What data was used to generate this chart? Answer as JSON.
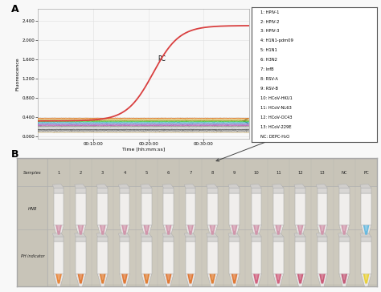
{
  "title_A": "A",
  "title_B": "B",
  "ylabel": "Fluorescence",
  "xlabel": "Time [hh:mm:ss]",
  "yticks": [
    0.0,
    0.4,
    0.8,
    1.2,
    1.6,
    2.0,
    2.4
  ],
  "xtick_labels": [
    "00:10:00",
    "00:20:00",
    "00:30:00"
  ],
  "legend_entries": [
    "1: HPIV-1",
    "2: HPIV-2",
    "3: HPIV-3",
    "4: H1N1-pdm09",
    "5: H1N1",
    "6: H3N2",
    "7: InfB",
    "8: RSV-A",
    "9: RSV-B",
    "10: HCoV-HKU1",
    "11: HCoV-NL63",
    "12: HCoV-OC43",
    "13: HCoV-229E",
    "NC: DEPC-H₂O"
  ],
  "pc_curve_color": "#d94040",
  "flat_line_colors": [
    "#e07828",
    "#c89600",
    "#88a020",
    "#40c040",
    "#28b8b8",
    "#4878c8",
    "#8858b8",
    "#b858a8",
    "#909090",
    "#b0b0b0",
    "#c8c8c8",
    "#585858",
    "#383838",
    "#c0a870"
  ],
  "bg_color": "#f8f8f8",
  "grid_color": "#e0e0e0",
  "plot_bg": "#f8f8f8",
  "annotation_text": "PC",
  "photo_bg": "#c8c4b8",
  "photo_border": "#a8a8a8",
  "cell_line_color": "#b0b0b0",
  "col_labels": [
    "Samples",
    "1",
    "2",
    "3",
    "4",
    "5",
    "6",
    "7",
    "8",
    "9",
    "10",
    "11",
    "12",
    "13",
    "NC",
    "PC"
  ],
  "row_label_hnb": "HNB",
  "row_label_ph": "PH indicator",
  "hnb_colors": [
    "#d090a8",
    "#d090a8",
    "#d090a8",
    "#d090a8",
    "#d090a8",
    "#d090a8",
    "#d090a8",
    "#d090a8",
    "#d090a8",
    "#d090a8",
    "#d090a8",
    "#d090a8",
    "#d090a8",
    "#d090a8",
    "#60b8e0"
  ],
  "ph_colors": [
    "#e88030",
    "#e07028",
    "#e07828",
    "#e07028",
    "#e07828",
    "#e07028",
    "#e07028",
    "#e07828",
    "#e07028",
    "#d05878",
    "#d05878",
    "#c85070",
    "#c85070",
    "#c05070",
    "#e8d030"
  ]
}
